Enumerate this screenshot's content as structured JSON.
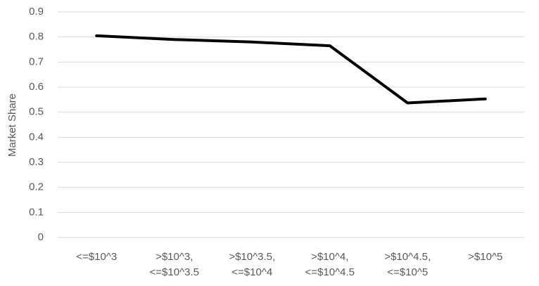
{
  "chart_data": {
    "type": "line",
    "y_label": "Market Share",
    "categories": [
      "<=$10^3",
      ">$10^3,\n<=$10^3.5",
      ">$10^3.5,\n<=$10^4",
      ">$10^4,\n<=$10^4.5",
      ">$10^4.5,\n<=$10^5",
      ">$10^5"
    ],
    "values": [
      0.805,
      0.79,
      0.78,
      0.765,
      0.537,
      0.553
    ],
    "color": "#000000",
    "ylim": [
      0,
      0.9
    ],
    "yticks": [
      0,
      0.1,
      0.2,
      0.3,
      0.4,
      0.5,
      0.6,
      0.7,
      0.8,
      0.9
    ],
    "grid": true
  }
}
